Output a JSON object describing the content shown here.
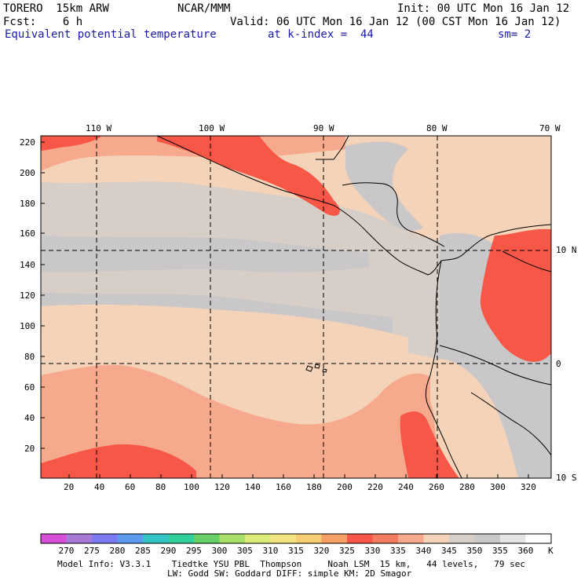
{
  "header": {
    "model": "TORERO  15km ARW",
    "org": "NCAR/MMM",
    "init": "Init: 00 UTC Mon 16 Jan 12",
    "fcst": "Fcst:    6 h",
    "valid": "Valid: 06 UTC Mon 16 Jan 12 (00 CST Mon 16 Jan 12)",
    "field": "Equivalent potential temperature",
    "level": "at k-index =  44",
    "smoothing": "sm= 2"
  },
  "map": {
    "top_lon_labels": [
      "110 W",
      "100 W",
      "90 W",
      "80 W",
      "70 W"
    ],
    "right_lat_labels": [
      "10 N",
      "0",
      "10 S"
    ],
    "left_ticks": [
      "220",
      "200",
      "180",
      "160",
      "140",
      "120",
      "100",
      "80",
      "60",
      "40",
      "20"
    ],
    "bottom_ticks": [
      "20",
      "40",
      "60",
      "80",
      "100",
      "120",
      "140",
      "160",
      "180",
      "200",
      "220",
      "240",
      "260",
      "280",
      "300",
      "320"
    ],
    "colors": {
      "warm": "#f5d3b8",
      "cool": "#d7cec8",
      "gray": "#c9c7c8",
      "salmon": "#f6a98d",
      "red": "#f65747",
      "redorange": "#f77e61",
      "coast": "#000000"
    }
  },
  "colorbar": {
    "labels": [
      "270",
      "275",
      "280",
      "285",
      "290",
      "295",
      "300",
      "305",
      "310",
      "315",
      "320",
      "325",
      "330",
      "335",
      "340",
      "345",
      "350",
      "355",
      "360"
    ],
    "unit": "K",
    "colors": [
      "#d74fd7",
      "#a77ad7",
      "#7a7af3",
      "#5d9bf0",
      "#33c4c4",
      "#31d09a",
      "#66d066",
      "#a6e06a",
      "#dcea77",
      "#f3e680",
      "#f6cc74",
      "#f6a066",
      "#f65747",
      "#f47c5e",
      "#f6a98d",
      "#f5d3b8",
      "#d7cec8",
      "#c9c7c8",
      "#e4e4e4",
      "#ffffff"
    ]
  },
  "footer": {
    "line1": "Model Info: V3.3.1    Tiedtke YSU PBL  Thompson     Noah LSM  15 km,   44 levels,   79 sec",
    "line2": "LW: Godd SW: Goddard DIFF: simple KM: 2D Smagor"
  }
}
